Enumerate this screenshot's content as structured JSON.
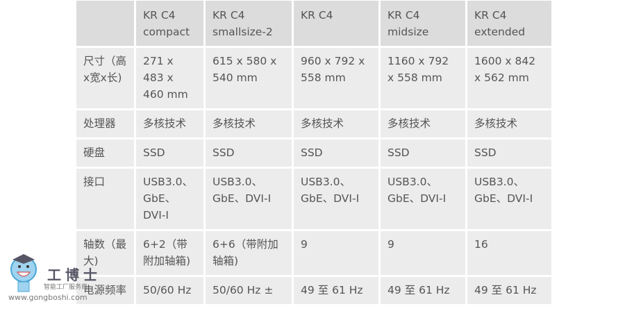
{
  "table": {
    "headers": [
      "",
      "KR C4 compact",
      "KR C4 smallsize-2",
      "KR C4",
      "KR C4 midsize",
      "KR C4 extended"
    ],
    "rows": [
      [
        "尺寸（高x宽x长)",
        "271 x 483 x 460 mm",
        "615 x 580 x 540 mm",
        "960 x 792 x 558 mm",
        "1160 x 792 x 558 mm",
        "1600 x 842 x 562 mm"
      ],
      [
        "处理器",
        "多核技术",
        "多核技术",
        "多核技术",
        "多核技术",
        "多核技术"
      ],
      [
        "硬盘",
        "SSD",
        "SSD",
        "SSD",
        "SSD",
        "SSD"
      ],
      [
        "接口",
        "USB3.0、GbE、DVI-I",
        "USB3.0、GbE、DVI-I",
        "USB3.0、GbE、DVI-I",
        "USB3.0、GbE、DVI-I",
        "USB3.0、GbE、DVI-I"
      ],
      [
        "轴数（最大)",
        "6+2（带附加轴箱)",
        "6+6（带附加轴箱)",
        "9",
        "9",
        "16"
      ],
      [
        "电源频率",
        "50/60 Hz",
        "50/60 Hz ±",
        "49 至 61 Hz",
        "49 至 61 Hz",
        "49 至 61 Hz"
      ]
    ]
  },
  "watermark": {
    "name": "工博士",
    "tagline": "智能工厂服务商",
    "url": "www.gongboshi.com"
  }
}
